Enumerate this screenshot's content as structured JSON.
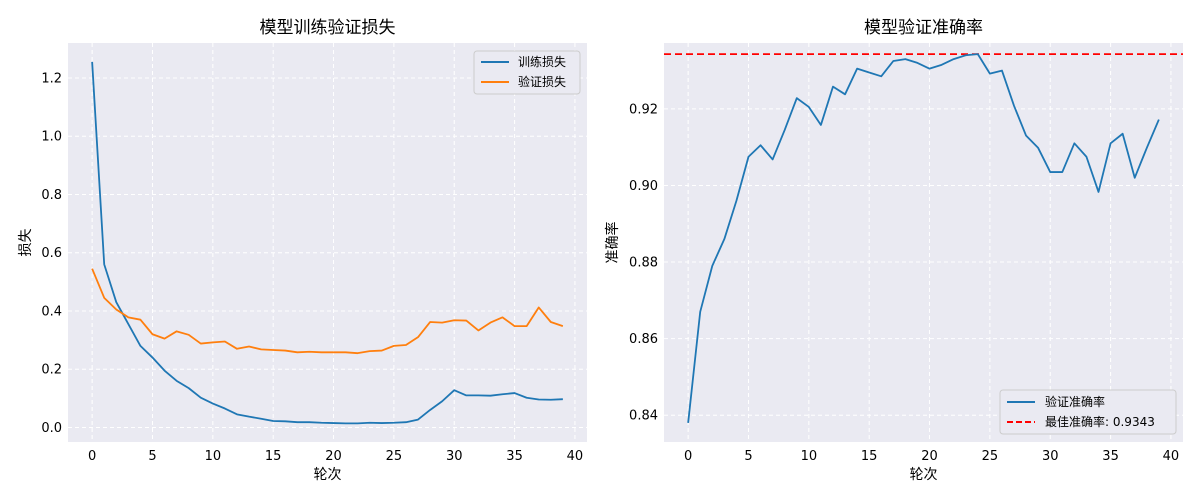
{
  "chart_data": [
    {
      "type": "line",
      "title": "模型训练验证损失",
      "xlabel": "轮次",
      "ylabel": "损失",
      "xlim": [
        -2,
        41
      ],
      "ylim": [
        -0.05,
        1.32
      ],
      "xticks": [
        0,
        5,
        10,
        15,
        20,
        25,
        30,
        35,
        40
      ],
      "yticks": [
        0.0,
        0.2,
        0.4,
        0.6,
        0.8,
        1.0,
        1.2
      ],
      "grid": true,
      "legend": "top-right",
      "x": [
        0,
        1,
        2,
        3,
        4,
        5,
        6,
        7,
        8,
        9,
        10,
        11,
        12,
        13,
        14,
        15,
        16,
        17,
        18,
        19,
        20,
        21,
        22,
        23,
        24,
        25,
        26,
        27,
        28,
        29,
        30,
        31,
        32,
        33,
        34,
        35,
        36,
        37,
        38,
        39
      ],
      "series": [
        {
          "name": "训练损失",
          "color": "#1f77b4",
          "values": [
            1.255,
            0.56,
            0.43,
            0.355,
            0.28,
            0.24,
            0.195,
            0.16,
            0.135,
            0.102,
            0.082,
            0.065,
            0.045,
            0.037,
            0.03,
            0.022,
            0.021,
            0.018,
            0.018,
            0.016,
            0.015,
            0.014,
            0.014,
            0.016,
            0.015,
            0.016,
            0.018,
            0.027,
            0.06,
            0.09,
            0.128,
            0.11,
            0.11,
            0.109,
            0.114,
            0.118,
            0.102,
            0.096,
            0.095,
            0.097
          ]
        },
        {
          "name": "验证损失",
          "color": "#ff7f0e",
          "values": [
            0.545,
            0.445,
            0.405,
            0.378,
            0.37,
            0.32,
            0.305,
            0.33,
            0.318,
            0.288,
            0.292,
            0.295,
            0.27,
            0.278,
            0.268,
            0.266,
            0.264,
            0.258,
            0.26,
            0.258,
            0.258,
            0.258,
            0.255,
            0.262,
            0.264,
            0.28,
            0.283,
            0.31,
            0.362,
            0.36,
            0.368,
            0.367,
            0.333,
            0.36,
            0.378,
            0.348,
            0.348,
            0.412,
            0.362,
            0.348
          ]
        }
      ]
    },
    {
      "type": "line",
      "title": "模型验证准确率",
      "xlabel": "轮次",
      "ylabel": "准确率",
      "xlim": [
        -2,
        41
      ],
      "ylim": [
        0.833,
        0.9372
      ],
      "xticks": [
        0,
        5,
        10,
        15,
        20,
        25,
        30,
        35,
        40
      ],
      "yticks": [
        0.84,
        0.86,
        0.88,
        0.9,
        0.92
      ],
      "ytick_decimals": 2,
      "grid": true,
      "legend": "bottom-right",
      "x": [
        0,
        1,
        2,
        3,
        4,
        5,
        6,
        7,
        8,
        9,
        10,
        11,
        12,
        13,
        14,
        15,
        16,
        17,
        18,
        19,
        20,
        21,
        22,
        23,
        24,
        25,
        26,
        27,
        28,
        29,
        30,
        31,
        32,
        33,
        34,
        35,
        36,
        37,
        38,
        39
      ],
      "series": [
        {
          "name": "验证准确率",
          "color": "#1f77b4",
          "values": [
            0.838,
            0.867,
            0.879,
            0.886,
            0.896,
            0.9075,
            0.9105,
            0.9068,
            0.9145,
            0.9228,
            0.9205,
            0.9158,
            0.9258,
            0.9238,
            0.9305,
            0.9295,
            0.9285,
            0.9325,
            0.933,
            0.932,
            0.9305,
            0.9315,
            0.933,
            0.934,
            0.9343,
            0.9292,
            0.93,
            0.9208,
            0.913,
            0.9098,
            0.9035,
            0.9035,
            0.911,
            0.9075,
            0.8983,
            0.911,
            0.9135,
            0.902,
            0.9098,
            0.9172
          ]
        }
      ],
      "hlines": [
        {
          "name": "最佳准确率: 0.9343",
          "y": 0.9343,
          "color": "#ff0000",
          "style": "dashed"
        }
      ]
    }
  ]
}
